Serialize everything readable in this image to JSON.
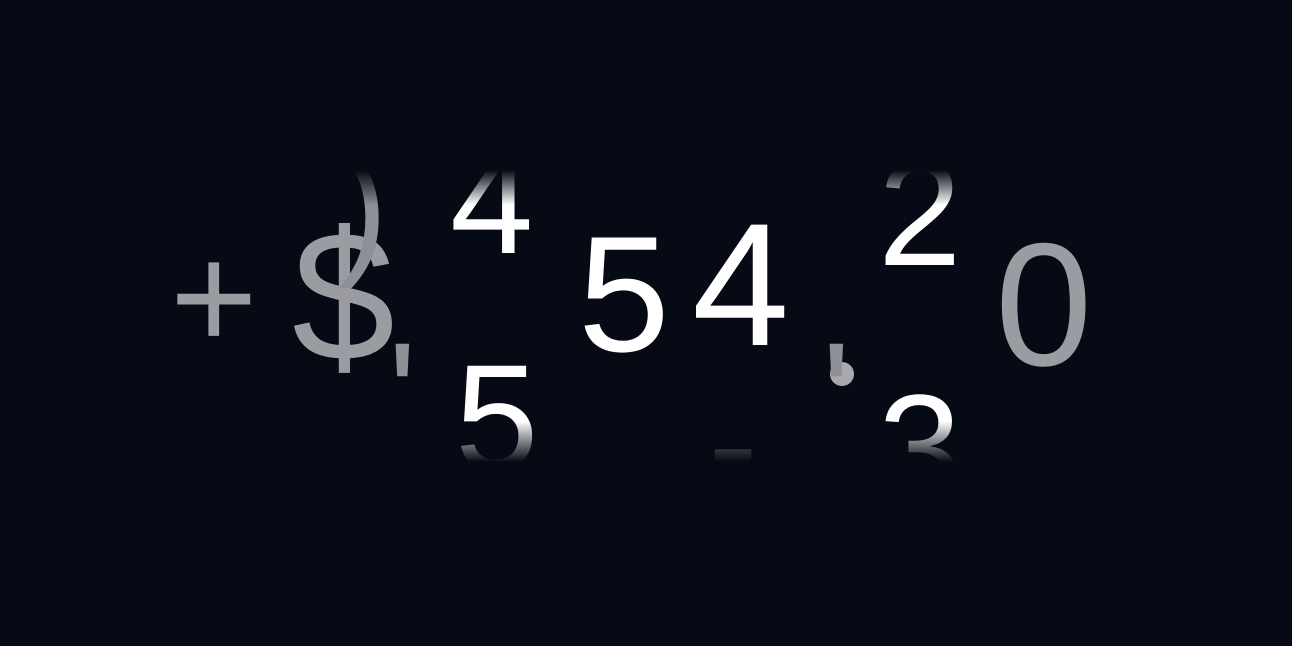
{
  "counter": {
    "sign": "+",
    "currency": "$",
    "digits_main": [
      "5",
      "4"
    ],
    "tail_digit": "0",
    "rolling": {
      "col_a": {
        "above": "4",
        "below": "5"
      },
      "col_b": {
        "above": "2",
        "below": "3"
      },
      "col_left": {
        "glyph": ")"
      },
      "separator_a": "'",
      "separator_b": "'",
      "decimal_point": ".",
      "dash": "-"
    }
  },
  "colors": {
    "background": "#060a14",
    "bright": "#ffffff",
    "dim": "#9a9ca1"
  }
}
